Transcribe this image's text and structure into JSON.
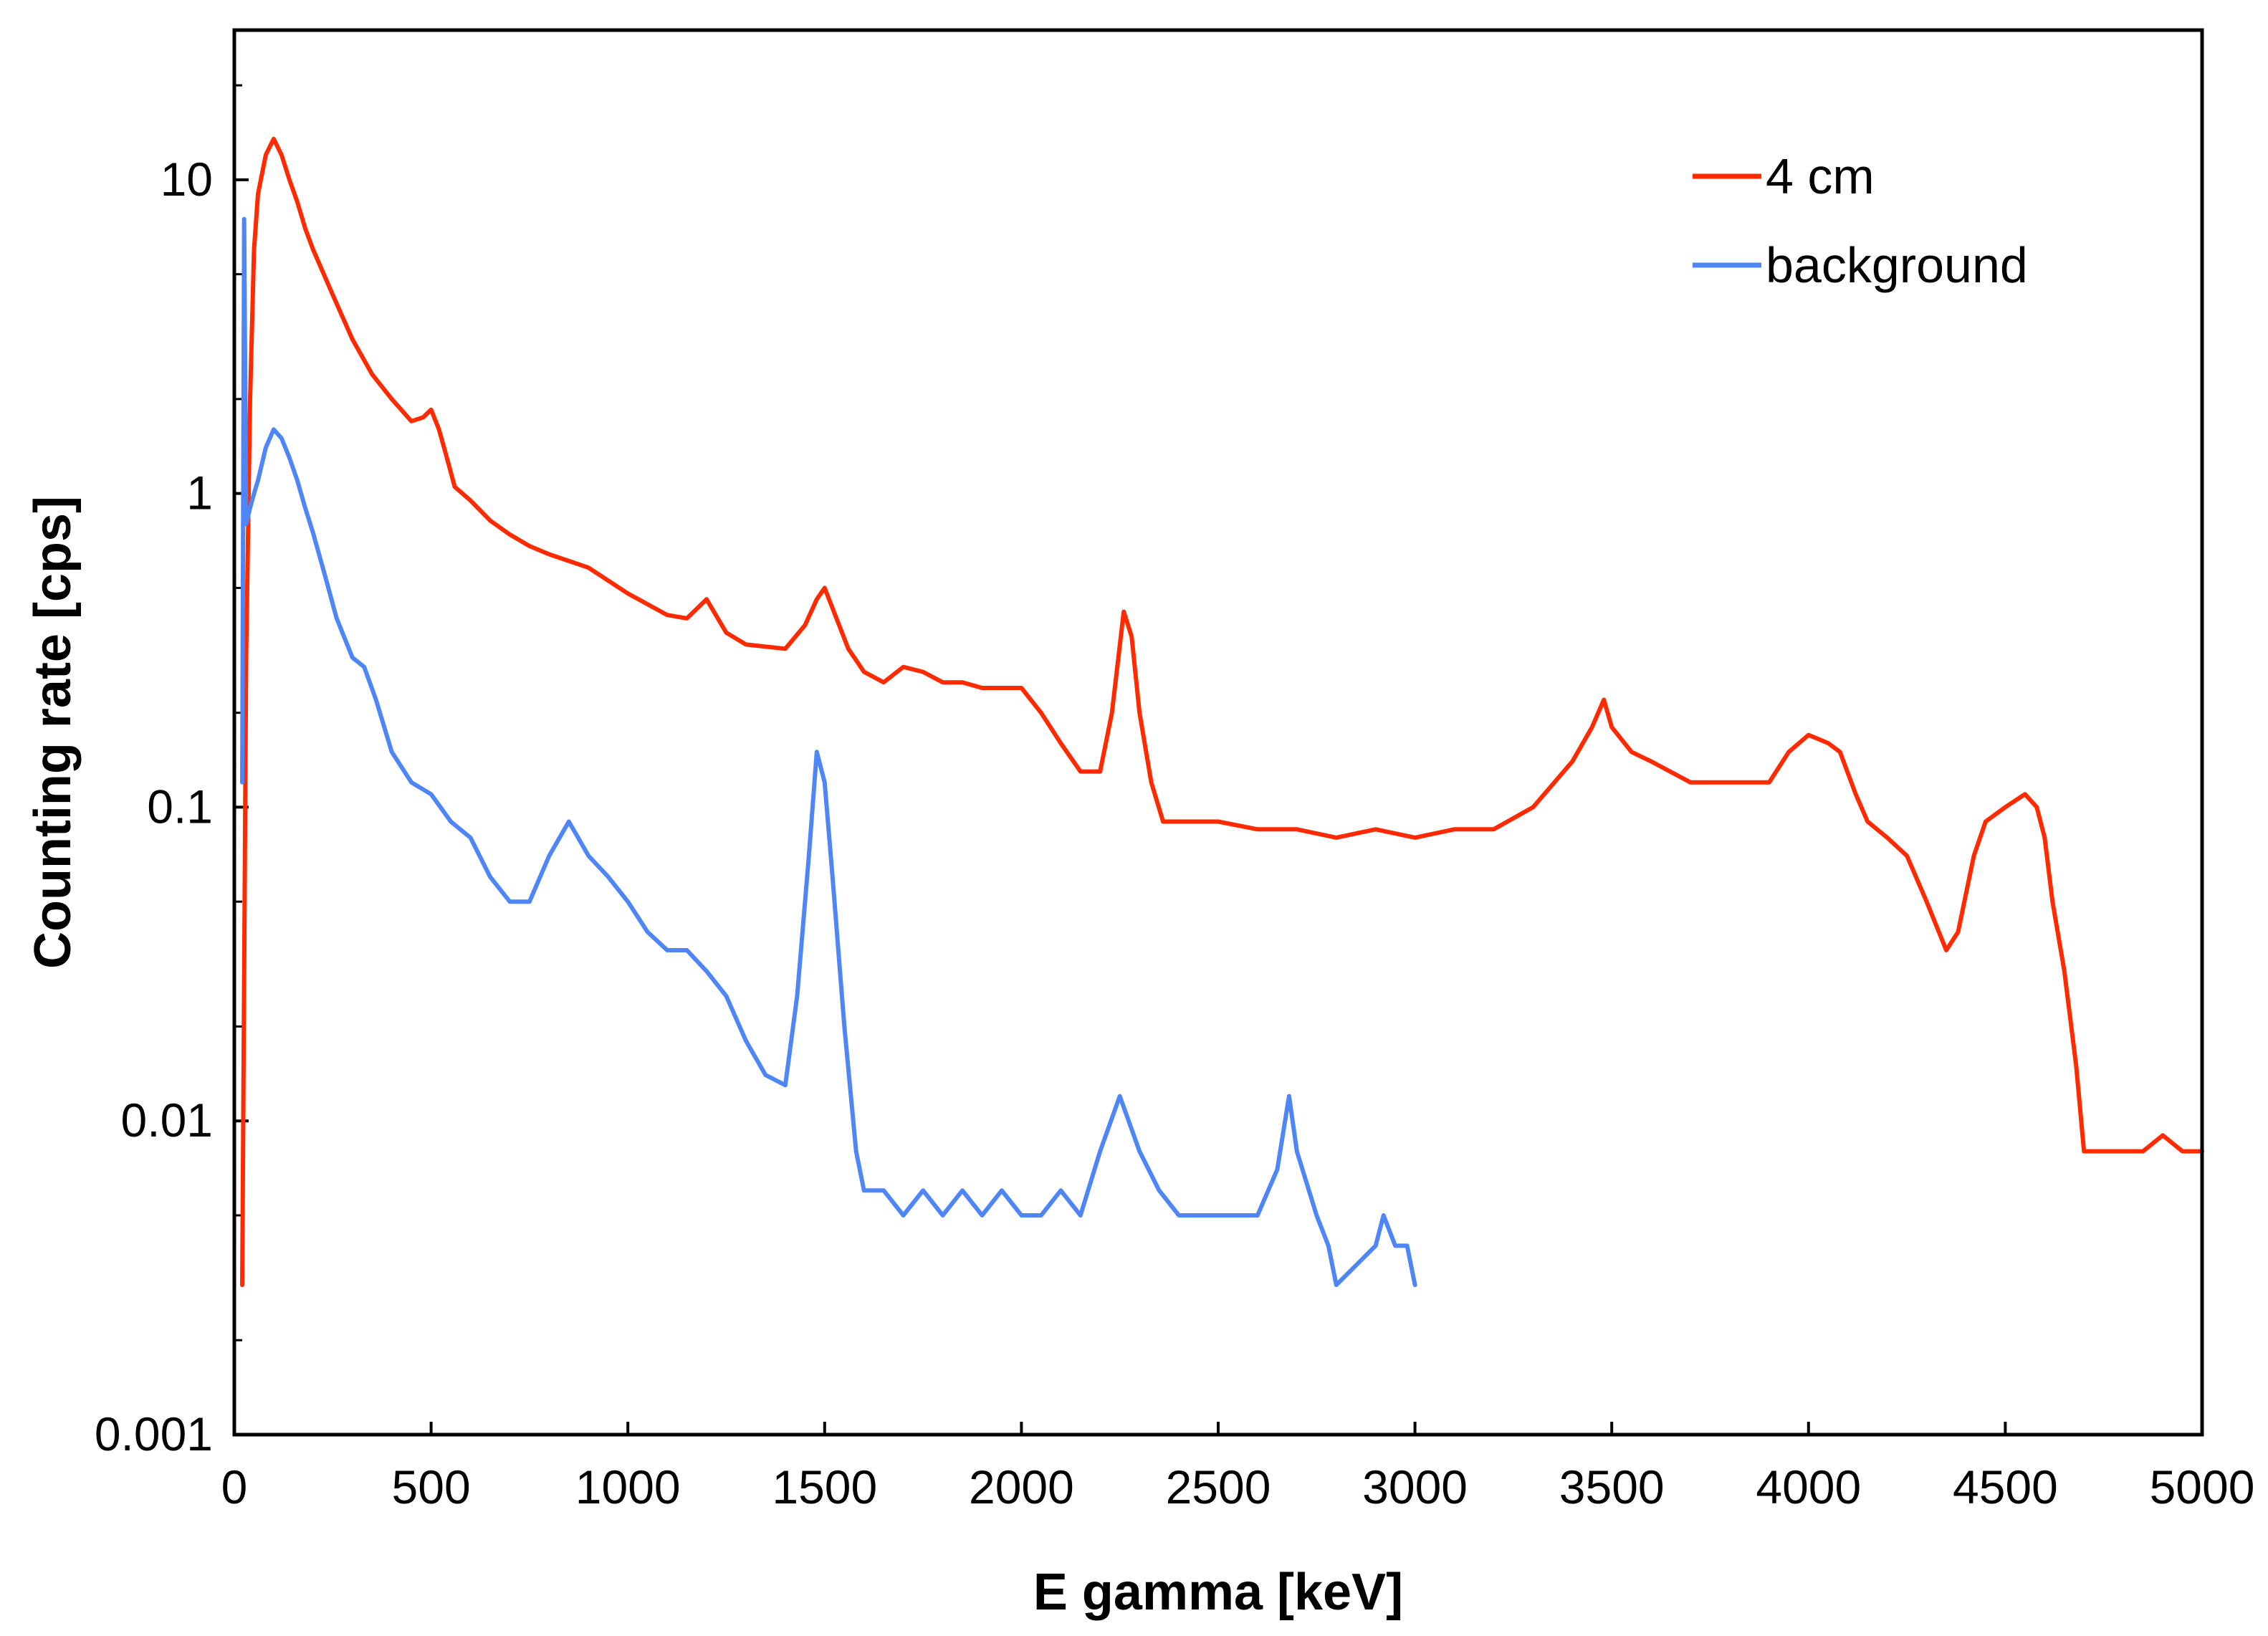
{
  "chart_data": {
    "type": "line",
    "title": "",
    "xlabel": "E gamma [keV]",
    "ylabel": "Counting rate [cps]",
    "xlim": [
      0,
      5000
    ],
    "ylim": [
      0.001,
      30
    ],
    "yscale": "log",
    "grid": false,
    "legend_position": "top-right",
    "x_ticks": [
      0,
      500,
      1000,
      1500,
      2000,
      2500,
      3000,
      3500,
      4000,
      4500,
      5000
    ],
    "x_tick_labels": [
      "0",
      "500",
      "1000",
      "1500",
      "2000",
      "2500",
      "3000",
      "3500",
      "4000",
      "4500",
      "5000"
    ],
    "y_ticks": [
      0.001,
      0.01,
      0.1,
      1,
      10
    ],
    "y_tick_labels": [
      "0.001",
      "0.01",
      "0.1",
      "1",
      "10"
    ],
    "series": [
      {
        "name": "4 cm",
        "color": "#ff2a00",
        "x": [
          20,
          30,
          40,
          50,
          60,
          80,
          100,
          120,
          140,
          160,
          180,
          200,
          250,
          300,
          350,
          400,
          450,
          480,
          500,
          520,
          540,
          560,
          600,
          650,
          700,
          750,
          800,
          900,
          1000,
          1100,
          1150,
          1200,
          1250,
          1300,
          1400,
          1450,
          1480,
          1500,
          1530,
          1560,
          1600,
          1650,
          1700,
          1750,
          1800,
          1850,
          1900,
          1950,
          2000,
          2050,
          2100,
          2150,
          2200,
          2230,
          2260,
          2280,
          2300,
          2330,
          2360,
          2400,
          2500,
          2600,
          2700,
          2800,
          2900,
          3000,
          3100,
          3200,
          3300,
          3400,
          3450,
          3480,
          3500,
          3550,
          3600,
          3700,
          3800,
          3900,
          3950,
          4000,
          4050,
          4080,
          4120,
          4150,
          4200,
          4250,
          4300,
          4350,
          4380,
          4420,
          4450,
          4500,
          4550,
          4580,
          4600,
          4620,
          4650,
          4680,
          4700,
          4750,
          4800,
          4850,
          4900,
          4950,
          5000
        ],
        "values": [
          0.003,
          0.3,
          2,
          6,
          9,
          12,
          13.5,
          12,
          10,
          8.5,
          7,
          6,
          4.3,
          3.1,
          2.4,
          2.0,
          1.7,
          1.75,
          1.85,
          1.6,
          1.3,
          1.05,
          0.95,
          0.82,
          0.74,
          0.68,
          0.64,
          0.58,
          0.48,
          0.41,
          0.4,
          0.46,
          0.36,
          0.33,
          0.32,
          0.38,
          0.46,
          0.5,
          0.4,
          0.32,
          0.27,
          0.25,
          0.28,
          0.27,
          0.25,
          0.25,
          0.24,
          0.24,
          0.24,
          0.2,
          0.16,
          0.13,
          0.13,
          0.2,
          0.42,
          0.35,
          0.2,
          0.12,
          0.09,
          0.09,
          0.09,
          0.085,
          0.085,
          0.08,
          0.085,
          0.08,
          0.085,
          0.085,
          0.1,
          0.14,
          0.18,
          0.22,
          0.18,
          0.15,
          0.14,
          0.12,
          0.12,
          0.12,
          0.15,
          0.17,
          0.16,
          0.15,
          0.11,
          0.09,
          0.08,
          0.07,
          0.05,
          0.035,
          0.04,
          0.07,
          0.09,
          0.1,
          0.11,
          0.1,
          0.08,
          0.05,
          0.03,
          0.015,
          0.008,
          0.008,
          0.008,
          0.008,
          0.009,
          0.008,
          0.008
        ]
      },
      {
        "name": "background",
        "color": "#4f86f7",
        "x": [
          20,
          25,
          30,
          40,
          50,
          60,
          80,
          100,
          120,
          140,
          160,
          180,
          200,
          230,
          260,
          300,
          330,
          360,
          400,
          450,
          500,
          550,
          600,
          650,
          700,
          750,
          800,
          850,
          900,
          950,
          1000,
          1050,
          1100,
          1150,
          1200,
          1250,
          1300,
          1350,
          1400,
          1430,
          1460,
          1480,
          1500,
          1520,
          1550,
          1580,
          1600,
          1650,
          1700,
          1750,
          1800,
          1850,
          1900,
          1950,
          2000,
          2050,
          2100,
          2150,
          2200,
          2250,
          2300,
          2350,
          2400,
          2450,
          2500,
          2550,
          2600,
          2650,
          2680,
          2700,
          2750,
          2780,
          2800,
          2900,
          2920,
          2950,
          2980,
          3000
        ],
        "values": [
          0.12,
          7.5,
          0.8,
          0.9,
          1.0,
          1.1,
          1.4,
          1.6,
          1.5,
          1.3,
          1.1,
          0.9,
          0.75,
          0.55,
          0.4,
          0.3,
          0.28,
          0.22,
          0.15,
          0.12,
          0.11,
          0.09,
          0.08,
          0.06,
          0.05,
          0.05,
          0.07,
          0.09,
          0.07,
          0.06,
          0.05,
          0.04,
          0.035,
          0.035,
          0.03,
          0.025,
          0.018,
          0.014,
          0.013,
          0.025,
          0.07,
          0.15,
          0.12,
          0.06,
          0.02,
          0.008,
          0.006,
          0.006,
          0.005,
          0.006,
          0.005,
          0.006,
          0.005,
          0.006,
          0.005,
          0.005,
          0.006,
          0.005,
          0.008,
          0.012,
          0.008,
          0.006,
          0.005,
          0.005,
          0.005,
          0.005,
          0.005,
          0.007,
          0.012,
          0.008,
          0.005,
          0.004,
          0.003,
          0.004,
          0.005,
          0.004,
          0.004,
          0.003
        ]
      }
    ]
  }
}
